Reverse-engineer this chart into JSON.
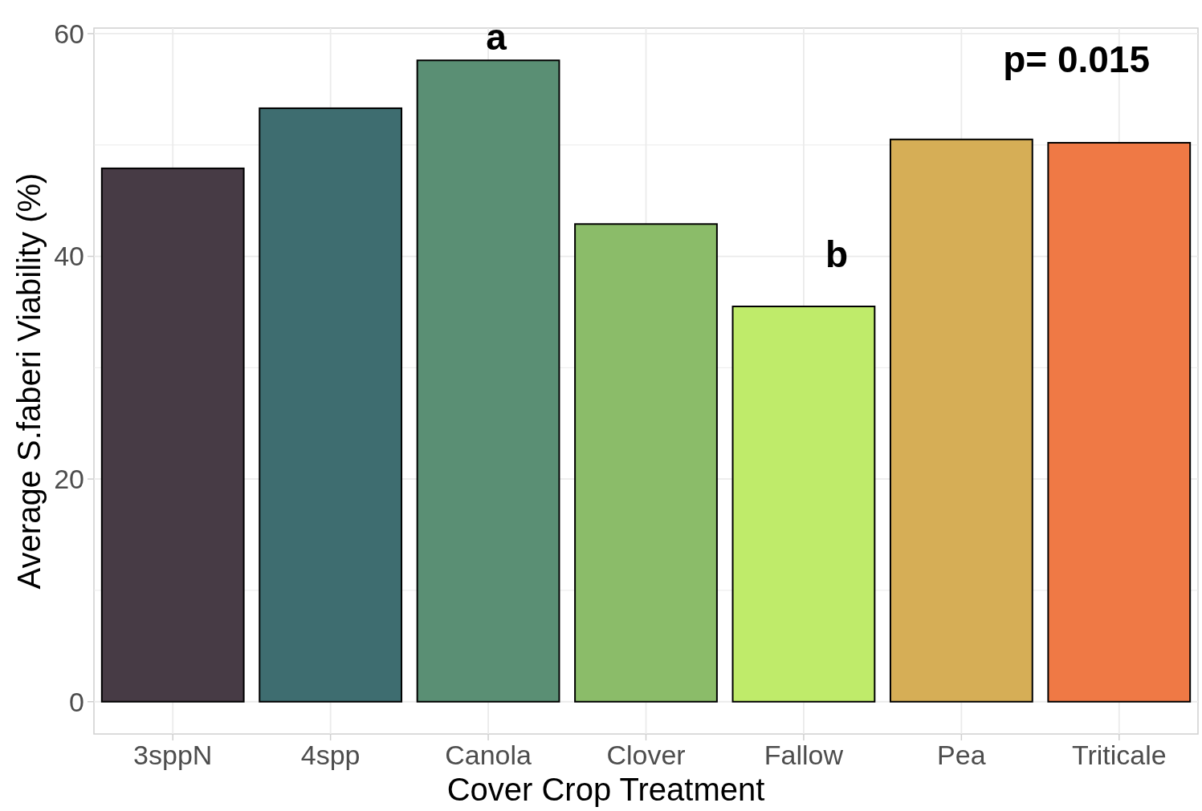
{
  "chart_data": {
    "type": "bar",
    "xlabel": "Cover Crop Treatment",
    "ylabel": "Average S.faberi Viability (%)",
    "categories": [
      "3sppN",
      "4spp",
      "Canola",
      "Clover",
      "Fallow",
      "Pea",
      "Triticale"
    ],
    "values": [
      47.9,
      53.3,
      57.6,
      42.9,
      35.5,
      50.5,
      50.2
    ],
    "colors": [
      "#473b45",
      "#3e6d70",
      "#5a8f74",
      "#8bbc69",
      "#bfeb6a",
      "#d6ae56",
      "#ef7945"
    ],
    "ylim": [
      -2.9,
      60.5
    ],
    "yticks": [
      0,
      {
        "value": 10,
        "label": null
      },
      20,
      {
        "value": 30,
        "label": null
      },
      40,
      {
        "value": 50,
        "label": null
      },
      60
    ],
    "grid": true,
    "annotations": [
      "a",
      "b",
      "p= 0.015"
    ]
  }
}
